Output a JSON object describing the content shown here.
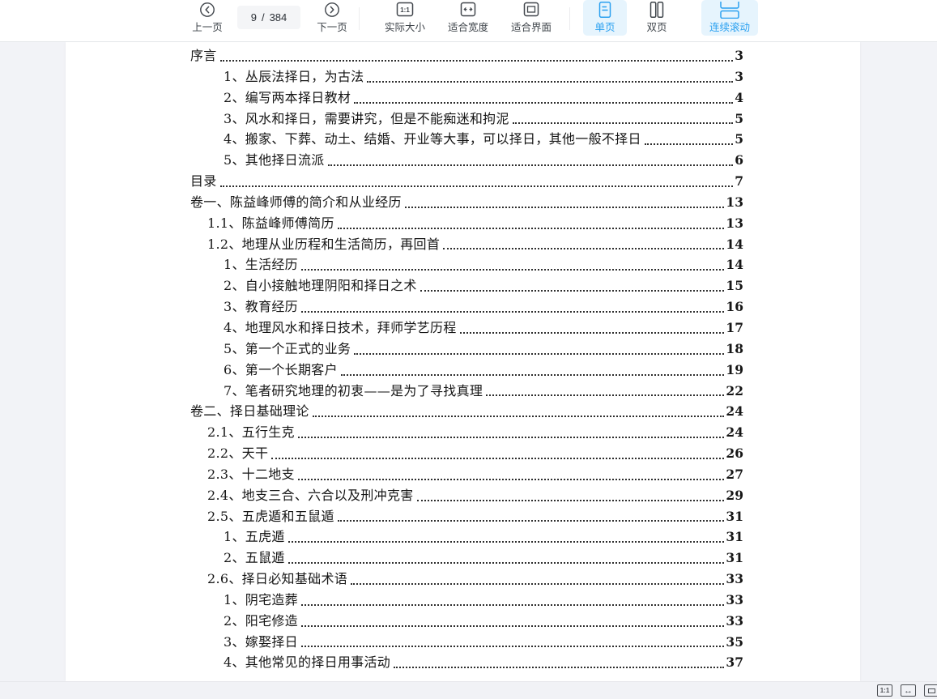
{
  "app": {
    "accent_color": "#2aa0f0",
    "accent_bg": "#e6f4fd"
  },
  "toolbar": {
    "prev": {
      "label": "上一页"
    },
    "page_indicator": {
      "current": "9",
      "separator": "/",
      "total": "384"
    },
    "next": {
      "label": "下一页"
    },
    "actual_size": {
      "label": "实际大小",
      "icon_text": "1:1"
    },
    "fit_width": {
      "label": "适合宽度"
    },
    "fit_page": {
      "label": "适合界面"
    },
    "single_page": {
      "label": "单页"
    },
    "double_page": {
      "label": "双页"
    },
    "continuous": {
      "label": "连续滚动"
    }
  },
  "statusbar": {
    "actual_size_icon_text": "1:1",
    "fit_width_icon": "↔"
  },
  "document": {
    "toc": [
      {
        "level": 0,
        "label": "序言",
        "page": "3"
      },
      {
        "level": 2,
        "label": "1、丛辰法择日，为古法",
        "page": "3"
      },
      {
        "level": 2,
        "label": "2、编写两本择日教材",
        "page": "4"
      },
      {
        "level": 2,
        "label": "3、风水和择日，需要讲究，但是不能痴迷和拘泥",
        "page": "5"
      },
      {
        "level": 2,
        "label": "4、搬家、下葬、动土、结婚、开业等大事，可以择日，其他一般不择日",
        "page": "5"
      },
      {
        "level": 2,
        "label": "5、其他择日流派",
        "page": "6"
      },
      {
        "level": 0,
        "label": "目录",
        "page": "7"
      },
      {
        "level": 0,
        "label": "卷一、陈益峰师傅的简介和从业经历",
        "page": "13"
      },
      {
        "level": 1,
        "label": "1.1、陈益峰师傅简历",
        "page": "13"
      },
      {
        "level": 1,
        "label": "1.2、地理从业历程和生活简历，再回首",
        "page": "14"
      },
      {
        "level": 2,
        "label": "1、生活经历",
        "page": "14"
      },
      {
        "level": 2,
        "label": "2、自小接触地理阴阳和择日之术",
        "page": "15"
      },
      {
        "level": 2,
        "label": "3、教育经历",
        "page": "16"
      },
      {
        "level": 2,
        "label": "4、地理风水和择日技术，拜师学艺历程",
        "page": "17"
      },
      {
        "level": 2,
        "label": "5、第一个正式的业务",
        "page": "18"
      },
      {
        "level": 2,
        "label": "6、第一个长期客户",
        "page": "19"
      },
      {
        "level": 2,
        "label": "7、笔者研究地理的初衷——是为了寻找真理",
        "page": "22"
      },
      {
        "level": 0,
        "label": "卷二、择日基础理论",
        "page": "24"
      },
      {
        "level": 1,
        "label": "2.1、五行生克",
        "page": "24"
      },
      {
        "level": 1,
        "label": "2.2、天干",
        "page": "26"
      },
      {
        "level": 1,
        "label": "2.3、十二地支",
        "page": "27"
      },
      {
        "level": 1,
        "label": "2.4、地支三合、六合以及刑冲克害",
        "page": "29"
      },
      {
        "level": 1,
        "label": "2.5、五虎遁和五鼠遁",
        "page": "31"
      },
      {
        "level": 2,
        "label": "1、五虎遁",
        "page": "31"
      },
      {
        "level": 2,
        "label": "2、五鼠遁",
        "page": "31"
      },
      {
        "level": 1,
        "label": "2.6、择日必知基础术语",
        "page": "33"
      },
      {
        "level": 2,
        "label": "1、阴宅造葬",
        "page": "33"
      },
      {
        "level": 2,
        "label": "2、阳宅修造",
        "page": "33"
      },
      {
        "level": 2,
        "label": "3、嫁娶择日",
        "page": "35"
      },
      {
        "level": 2,
        "label": "4、其他常见的择日用事活动",
        "page": "37"
      }
    ]
  }
}
